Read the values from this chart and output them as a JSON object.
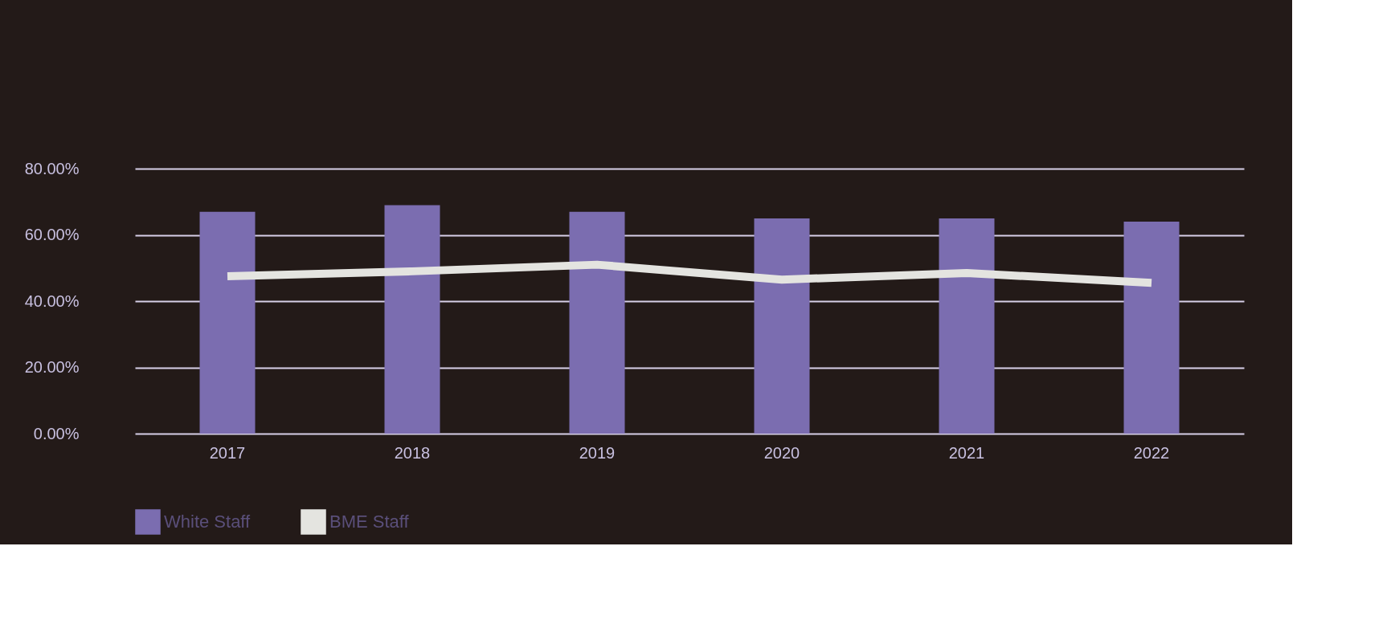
{
  "chart_data": {
    "type": "bar",
    "categories": [
      "2017",
      "2018",
      "2019",
      "2020",
      "2021",
      "2022"
    ],
    "series": [
      {
        "name": "White Staff",
        "color": "#7b6db0",
        "values": [
          67,
          69,
          67,
          65,
          65,
          64
        ]
      },
      {
        "name": "BME Staff",
        "type": "line",
        "color": "#e4e4e0",
        "values": [
          47.5,
          49,
          51,
          46.5,
          48.5,
          45.5
        ]
      }
    ],
    "ylim": [
      0,
      80
    ],
    "yticks": [
      {
        "value": 0,
        "label": "0.00%"
      },
      {
        "value": 20,
        "label": "20.00%"
      },
      {
        "value": 40,
        "label": "40.00%"
      },
      {
        "value": 60,
        "label": "60.00%"
      },
      {
        "value": 80,
        "label": "80.00%"
      }
    ],
    "grid": "y",
    "legend": "bottom",
    "marker": "none",
    "line_style": "solid"
  }
}
